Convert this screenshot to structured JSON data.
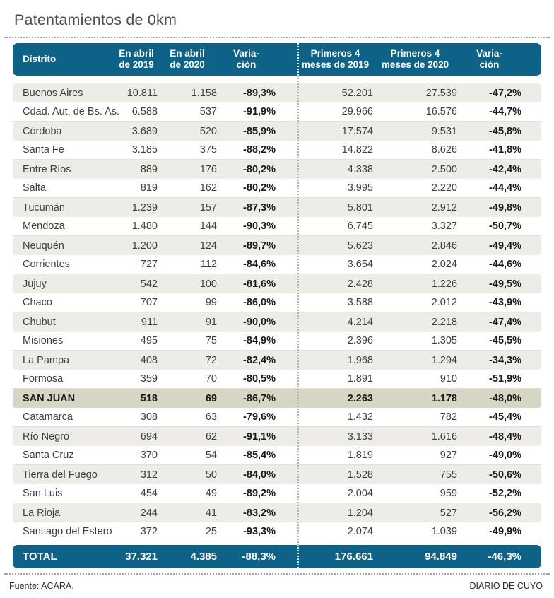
{
  "title": "Patentamientos de 0km",
  "header_display": {
    "district": "Distrito",
    "c1": [
      "En abril",
      "de 2019"
    ],
    "c2": [
      "En abril",
      "de 2020"
    ],
    "c3": [
      "Varia-",
      "ción"
    ],
    "c4": [
      "Primeros 4",
      "meses de 2019"
    ],
    "c5": [
      "Primeros 4",
      "meses de 2020"
    ],
    "c6": [
      "Varia-",
      "ción"
    ]
  },
  "chart_data": {
    "type": "table",
    "title": "Patentamientos de 0km",
    "columns": [
      "Distrito",
      "En abril de 2019",
      "En abril de 2020",
      "Variación",
      "Primeros 4 meses de 2019",
      "Primeros 4 meses de 2020",
      "Variación"
    ],
    "rows": [
      [
        "Buenos Aires",
        "10.811",
        "1.158",
        "-89,3%",
        "52.201",
        "27.539",
        "-47,2%"
      ],
      [
        "Cdad. Aut. de Bs. As.",
        "6.588",
        "537",
        "-91,9%",
        "29.966",
        "16.576",
        "-44,7%"
      ],
      [
        "Córdoba",
        "3.689",
        "520",
        "-85,9%",
        "17.574",
        "9.531",
        "-45,8%"
      ],
      [
        "Santa Fe",
        "3.185",
        "375",
        "-88,2%",
        "14.822",
        "8.626",
        "-41,8%"
      ],
      [
        "Entre Ríos",
        "889",
        "176",
        "-80,2%",
        "4.338",
        "2.500",
        "-42,4%"
      ],
      [
        "Salta",
        "819",
        "162",
        "-80,2%",
        "3.995",
        "2.220",
        "-44,4%"
      ],
      [
        "Tucumán",
        "1.239",
        "157",
        "-87,3%",
        "5.801",
        "2.912",
        "-49,8%"
      ],
      [
        "Mendoza",
        "1.480",
        "144",
        "-90,3%",
        "6.745",
        "3.327",
        "-50,7%"
      ],
      [
        "Neuquén",
        "1.200",
        "124",
        "-89,7%",
        "5.623",
        "2.846",
        "-49,4%"
      ],
      [
        "Corrientes",
        "727",
        "112",
        "-84,6%",
        "3.654",
        "2.024",
        "-44,6%"
      ],
      [
        "Jujuy",
        "542",
        "100",
        "-81,6%",
        "2.428",
        "1.226",
        "-49,5%"
      ],
      [
        "Chaco",
        "707",
        "99",
        "-86,0%",
        "3.588",
        "2.012",
        "-43,9%"
      ],
      [
        "Chubut",
        "911",
        "91",
        "-90,0%",
        "4.214",
        "2.218",
        "-47,4%"
      ],
      [
        "Misiones",
        "495",
        "75",
        "-84,9%",
        "2.396",
        "1.305",
        "-45,5%"
      ],
      [
        "La Pampa",
        "408",
        "72",
        "-82,4%",
        "1.968",
        "1.294",
        "-34,3%"
      ],
      [
        "Formosa",
        "359",
        "70",
        "-80,5%",
        "1.891",
        "910",
        "-51,9%"
      ],
      [
        "SAN JUAN",
        "518",
        "69",
        "-86,7%",
        "2.263",
        "1.178",
        "-48,0%"
      ],
      [
        "Catamarca",
        "308",
        "63",
        "-79,6%",
        "1.432",
        "782",
        "-45,4%"
      ],
      [
        "Río Negro",
        "694",
        "62",
        "-91,1%",
        "3.133",
        "1.616",
        "-48,4%"
      ],
      [
        "Santa Cruz",
        "370",
        "54",
        "-85,4%",
        "1.819",
        "927",
        "-49,0%"
      ],
      [
        "Tierra del Fuego",
        "312",
        "50",
        "-84,0%",
        "1.528",
        "755",
        "-50,6%"
      ],
      [
        "San Luis",
        "454",
        "49",
        "-89,2%",
        "2.004",
        "959",
        "-52,2%"
      ],
      [
        "La Rioja",
        "244",
        "41",
        "-83,2%",
        "1.204",
        "527",
        "-56,2%"
      ],
      [
        "Santiago del Estero",
        "372",
        "25",
        "-93,3%",
        "2.074",
        "1.039",
        "-49,9%"
      ]
    ],
    "highlighted_row": "SAN JUAN",
    "total_row": [
      "TOTAL",
      "37.321",
      "4.385",
      "-88,3%",
      "176.661",
      "94.849",
      "-46,3%"
    ]
  },
  "footer": {
    "source": "Fuente: ACARA.",
    "credit": "DIARIO DE CUYO"
  },
  "colors": {
    "accent_teal": "#0e6287",
    "row_alt": "#edece6",
    "highlight_row": "#d7d6c4",
    "title_text": "#4d4d4d"
  }
}
